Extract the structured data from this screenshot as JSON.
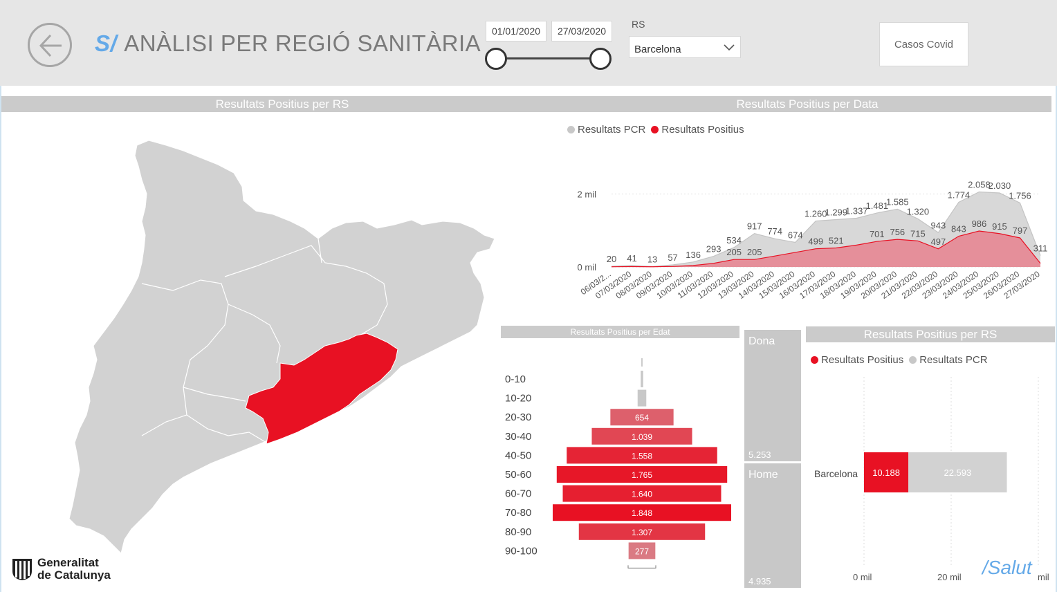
{
  "header": {
    "title_prefix": "S/",
    "title": "ANÀLISI PER REGIÓ SANITÀRIA",
    "date_from": "01/01/2020",
    "date_to": "27/03/2020",
    "rs_label": "RS",
    "rs_value": "Barcelona",
    "casos_button": "Casos Covid"
  },
  "map_section": {
    "title": "Resultats Positius per RS",
    "highlight_color": "#e81123",
    "region_color": "#d2d2d2"
  },
  "date_section": {
    "title": "Resultats Positius per Data",
    "legend": [
      {
        "label": "Resultats PCR",
        "color": "#c8c8c8"
      },
      {
        "label": "Resultats Positius",
        "color": "#e81123"
      }
    ]
  },
  "age_section": {
    "title": "Resultats Positius per Edat"
  },
  "gender": [
    {
      "name": "Dona",
      "value": "5.253"
    },
    {
      "name": "Home",
      "value": "4.935"
    }
  ],
  "rs_section": {
    "title": "Resultats Positius per RS",
    "legend": [
      {
        "label": "Resultats Positius",
        "color": "#e81123"
      },
      {
        "label": "Resultats PCR",
        "color": "#c8c8c8"
      }
    ],
    "region": "Barcelona",
    "positius_label": "10.188",
    "pcr_label": "22.593",
    "axis_0": "0 mil",
    "axis_20": "20 mil",
    "axis_end": "mil"
  },
  "logo": {
    "line1": "Generalitat",
    "line2": "de Catalunya",
    "salut": "/Salut"
  },
  "chart_data": [
    {
      "type": "area",
      "x": [
        "06/03/2020",
        "07/03/2020",
        "08/03/2020",
        "09/03/2020",
        "10/03/2020",
        "11/03/2020",
        "12/03/2020",
        "13/03/2020",
        "14/03/2020",
        "15/03/2020",
        "16/03/2020",
        "17/03/2020",
        "18/03/2020",
        "19/03/2020",
        "20/03/2020",
        "21/03/2020",
        "22/03/2020",
        "23/03/2020",
        "24/03/2020",
        "25/03/2020",
        "26/03/2020",
        "27/03/2020"
      ],
      "x_tick_labels": [
        "06/03/2...",
        "07/03/2020",
        "08/03/2020",
        "09/03/2020",
        "10/03/2020",
        "11/03/2020",
        "12/03/2020",
        "13/03/2020",
        "14/03/2020",
        "15/03/2020",
        "16/03/2020",
        "17/03/2020",
        "18/03/2020",
        "19/03/2020",
        "20/03/2020",
        "21/03/2020",
        "22/03/2020",
        "23/03/2020",
        "24/03/2020",
        "25/03/2020",
        "26/03/2020",
        "27/03/2020"
      ],
      "y_tick_labels": [
        "0 mil",
        "2 mil"
      ],
      "ylim": [
        0,
        2200
      ],
      "series": [
        {
          "name": "Resultats PCR",
          "values": [
            20,
            41,
            13,
            57,
            136,
            293,
            534,
            917,
            774,
            674,
            1260,
            1299,
            1337,
            1481,
            1585,
            1320,
            943,
            1774,
            2058,
            2030,
            1756,
            311
          ]
        },
        {
          "name": "Resultats Positius",
          "values": [
            5,
            10,
            5,
            15,
            40,
            100,
            205,
            205,
            300,
            400,
            499,
            521,
            600,
            701,
            756,
            715,
            497,
            843,
            986,
            915,
            797,
            100
          ]
        }
      ],
      "data_labels": [
        {
          "series": 0,
          "index": 0,
          "text": "20"
        },
        {
          "series": 0,
          "index": 1,
          "text": "41"
        },
        {
          "series": 0,
          "index": 2,
          "text": "13"
        },
        {
          "series": 0,
          "index": 3,
          "text": "57"
        },
        {
          "series": 0,
          "index": 4,
          "text": "136"
        },
        {
          "series": 0,
          "index": 5,
          "text": "293"
        },
        {
          "series": 0,
          "index": 6,
          "text": "534"
        },
        {
          "series": 0,
          "index": 7,
          "text": "917"
        },
        {
          "series": 0,
          "index": 8,
          "text": "774"
        },
        {
          "series": 0,
          "index": 9,
          "text": "674"
        },
        {
          "series": 0,
          "index": 10,
          "text": "1.260"
        },
        {
          "series": 0,
          "index": 11,
          "text": "1.299"
        },
        {
          "series": 0,
          "index": 12,
          "text": "1.337"
        },
        {
          "series": 0,
          "index": 13,
          "text": "1.481"
        },
        {
          "series": 0,
          "index": 14,
          "text": "1.585"
        },
        {
          "series": 0,
          "index": 15,
          "text": "1.320"
        },
        {
          "series": 0,
          "index": 16,
          "text": "943"
        },
        {
          "series": 0,
          "index": 17,
          "text": "1.774"
        },
        {
          "series": 0,
          "index": 18,
          "text": "2.058"
        },
        {
          "series": 0,
          "index": 19,
          "text": "2.030"
        },
        {
          "series": 0,
          "index": 20,
          "text": "1.756"
        },
        {
          "series": 0,
          "index": 21,
          "text": "311"
        },
        {
          "series": 1,
          "index": 6,
          "text": "205"
        },
        {
          "series": 1,
          "index": 7,
          "text": "205"
        },
        {
          "series": 1,
          "index": 10,
          "text": "499"
        },
        {
          "series": 1,
          "index": 11,
          "text": "521"
        },
        {
          "series": 1,
          "index": 13,
          "text": "701"
        },
        {
          "series": 1,
          "index": 14,
          "text": "756"
        },
        {
          "series": 1,
          "index": 15,
          "text": "715"
        },
        {
          "series": 1,
          "index": 16,
          "text": "497"
        },
        {
          "series": 1,
          "index": 17,
          "text": "843"
        },
        {
          "series": 1,
          "index": 18,
          "text": "986"
        },
        {
          "series": 1,
          "index": 19,
          "text": "915"
        },
        {
          "series": 1,
          "index": 20,
          "text": "797"
        }
      ]
    },
    {
      "type": "bar",
      "categories": [
        "0-10",
        "10-20",
        "20-30",
        "30-40",
        "40-50",
        "50-60",
        "60-70",
        "70-80",
        "80-90",
        "90-100"
      ],
      "values": [
        25,
        90,
        654,
        1039,
        1558,
        1765,
        1640,
        1848,
        1307,
        277
      ],
      "labels": [
        "",
        "",
        "654",
        "1.039",
        "1.558",
        "1.765",
        "1.640",
        "1.848",
        "1.307",
        "277"
      ],
      "orientation": "funnel"
    },
    {
      "type": "bar",
      "categories": [
        "Barcelona"
      ],
      "series": [
        {
          "name": "Resultats Positius",
          "values": [
            10188
          ]
        },
        {
          "name": "Resultats PCR",
          "values": [
            22593
          ]
        }
      ],
      "stacked": true,
      "xlim": [
        0,
        40000
      ]
    }
  ]
}
